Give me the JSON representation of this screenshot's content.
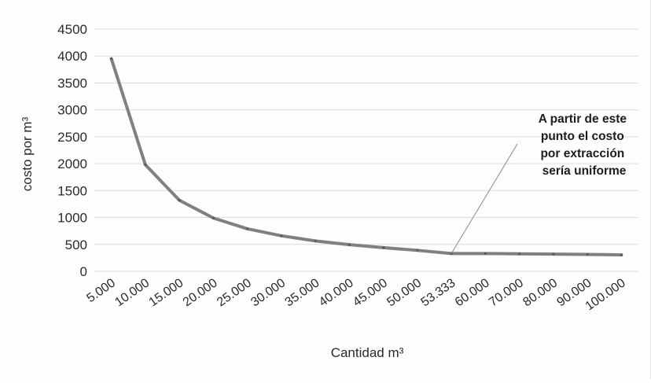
{
  "chart_data": {
    "type": "line",
    "xlabel": "Cantidad m³",
    "ylabel": "costo por m³",
    "ylim": [
      0,
      4500
    ],
    "yticks": [
      "0",
      "500",
      "1000",
      "1500",
      "2000",
      "2500",
      "3000",
      "3500",
      "4000",
      "4500"
    ],
    "categories": [
      "5.000",
      "10.000",
      "15.000",
      "20.000",
      "25.000",
      "30.000",
      "35.000",
      "40.000",
      "45.000",
      "50.000",
      "53.333",
      "60.000",
      "70.000",
      "80.000",
      "90.000",
      "100.000"
    ],
    "series": [
      {
        "values": [
          3950,
          1980,
          1320,
          990,
          790,
          660,
          565,
          495,
          440,
          390,
          330,
          330,
          325,
          320,
          315,
          305
        ],
        "color": "#808080"
      }
    ],
    "grid": true,
    "legend": "none",
    "annotation": {
      "lines": [
        "A partir de este",
        "punto el costo",
        "por extracción",
        "sería uniforme"
      ],
      "points_to_category": "53.333"
    }
  }
}
